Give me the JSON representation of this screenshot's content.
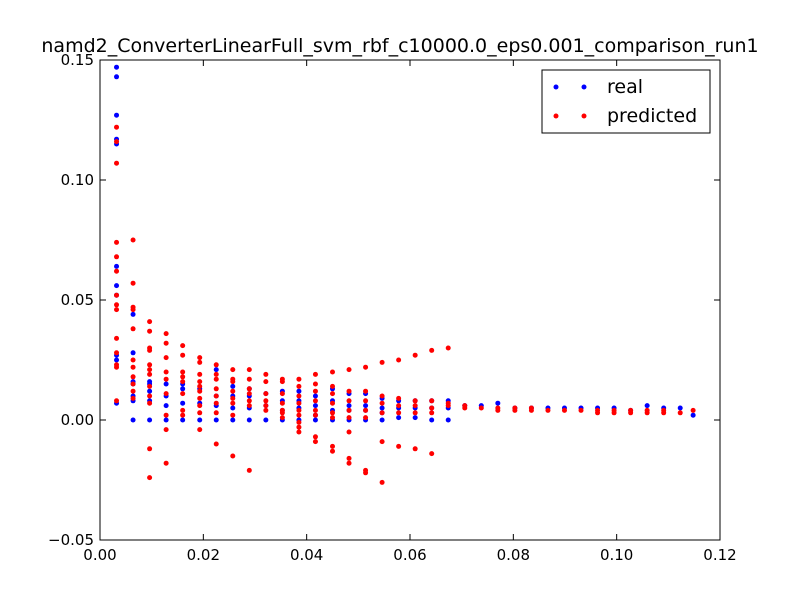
{
  "chart_data": {
    "type": "scatter",
    "title": "namd2_ConverterLinearFull_svm_rbf_c10000.0_eps0.001_comparison_run1",
    "xlabel": "",
    "ylabel": "",
    "xlim": [
      0.0,
      0.12
    ],
    "ylim": [
      -0.05,
      0.15
    ],
    "x_ticks": [
      0.0,
      0.02,
      0.04,
      0.06,
      0.08,
      0.1,
      0.12
    ],
    "x_tick_labels": [
      "0.00",
      "0.02",
      "0.04",
      "0.06",
      "0.08",
      "0.10",
      "0.12"
    ],
    "y_ticks": [
      -0.05,
      0.0,
      0.05,
      0.1,
      0.15
    ],
    "y_tick_labels": [
      "−0.05",
      "0.00",
      "0.05",
      "0.10",
      "0.15"
    ],
    "grid": false,
    "legend": "top-right",
    "series": [
      {
        "name": "real",
        "color": "#0000ff",
        "points": [
          [
            0.0032,
            0.147
          ],
          [
            0.0032,
            0.143
          ],
          [
            0.0032,
            0.127
          ],
          [
            0.0032,
            0.117
          ],
          [
            0.0032,
            0.115
          ],
          [
            0.0032,
            0.064
          ],
          [
            0.0032,
            0.056
          ],
          [
            0.0032,
            0.052
          ],
          [
            0.0032,
            0.027
          ],
          [
            0.0032,
            0.025
          ],
          [
            0.0032,
            0.007
          ],
          [
            0.0064,
            0.044
          ],
          [
            0.0064,
            0.028
          ],
          [
            0.0064,
            0.016
          ],
          [
            0.0064,
            0.015
          ],
          [
            0.0064,
            0.01
          ],
          [
            0.0064,
            0.008
          ],
          [
            0.0064,
            0.0
          ],
          [
            0.0096,
            0.016
          ],
          [
            0.0096,
            0.015
          ],
          [
            0.0096,
            0.012
          ],
          [
            0.0096,
            0.008
          ],
          [
            0.0096,
            0.0
          ],
          [
            0.0128,
            0.015
          ],
          [
            0.0128,
            0.01
          ],
          [
            0.0128,
            0.006
          ],
          [
            0.0128,
            0.0
          ],
          [
            0.016,
            0.015
          ],
          [
            0.016,
            0.013
          ],
          [
            0.016,
            0.007
          ],
          [
            0.016,
            0.0
          ],
          [
            0.0193,
            0.013
          ],
          [
            0.0193,
            0.007
          ],
          [
            0.0193,
            0.0
          ],
          [
            0.0225,
            0.021
          ],
          [
            0.0225,
            0.01
          ],
          [
            0.0225,
            0.006
          ],
          [
            0.0225,
            0.0
          ],
          [
            0.0257,
            0.014
          ],
          [
            0.0257,
            0.01
          ],
          [
            0.0257,
            0.005
          ],
          [
            0.0257,
            0.0
          ],
          [
            0.0289,
            0.013
          ],
          [
            0.0289,
            0.01
          ],
          [
            0.0289,
            0.005
          ],
          [
            0.0289,
            0.0
          ],
          [
            0.0321,
            0.011
          ],
          [
            0.0321,
            0.006
          ],
          [
            0.0321,
            0.0
          ],
          [
            0.0353,
            0.012
          ],
          [
            0.0353,
            0.008
          ],
          [
            0.0353,
            0.004
          ],
          [
            0.0353,
            0.0
          ],
          [
            0.0385,
            0.012
          ],
          [
            0.0385,
            0.008
          ],
          [
            0.0385,
            0.005
          ],
          [
            0.0385,
            0.0
          ],
          [
            0.0417,
            0.01
          ],
          [
            0.0417,
            0.006
          ],
          [
            0.0417,
            0.002
          ],
          [
            0.0417,
            0.0
          ],
          [
            0.045,
            0.013
          ],
          [
            0.045,
            0.008
          ],
          [
            0.045,
            0.004
          ],
          [
            0.045,
            0.0
          ],
          [
            0.0482,
            0.011
          ],
          [
            0.0482,
            0.006
          ],
          [
            0.0482,
            0.004
          ],
          [
            0.0482,
            0.0
          ],
          [
            0.0514,
            0.011
          ],
          [
            0.0514,
            0.006
          ],
          [
            0.0514,
            0.004
          ],
          [
            0.0514,
            0.0
          ],
          [
            0.0546,
            0.009
          ],
          [
            0.0546,
            0.005
          ],
          [
            0.0546,
            0.003
          ],
          [
            0.0546,
            0.0
          ],
          [
            0.0578,
            0.008
          ],
          [
            0.0578,
            0.005
          ],
          [
            0.0578,
            0.001
          ],
          [
            0.061,
            0.008
          ],
          [
            0.061,
            0.005
          ],
          [
            0.061,
            0.001
          ],
          [
            0.0642,
            0.008
          ],
          [
            0.0642,
            0.005
          ],
          [
            0.0642,
            0.0
          ],
          [
            0.0674,
            0.008
          ],
          [
            0.0674,
            0.005
          ],
          [
            0.0674,
            0.0
          ],
          [
            0.0706,
            0.006
          ],
          [
            0.0738,
            0.006
          ],
          [
            0.077,
            0.007
          ],
          [
            0.0803,
            0.005
          ],
          [
            0.0835,
            0.005
          ],
          [
            0.0867,
            0.005
          ],
          [
            0.0899,
            0.005
          ],
          [
            0.0931,
            0.005
          ],
          [
            0.0963,
            0.005
          ],
          [
            0.0995,
            0.005
          ],
          [
            0.1027,
            0.004
          ],
          [
            0.1059,
            0.006
          ],
          [
            0.1091,
            0.005
          ],
          [
            0.1123,
            0.005
          ],
          [
            0.1148,
            0.002
          ]
        ]
      },
      {
        "name": "predicted",
        "color": "#ff0000",
        "points": [
          [
            0.0032,
            0.122
          ],
          [
            0.0032,
            0.116
          ],
          [
            0.0032,
            0.107
          ],
          [
            0.0032,
            0.074
          ],
          [
            0.0032,
            0.068
          ],
          [
            0.0032,
            0.062
          ],
          [
            0.0032,
            0.052
          ],
          [
            0.0032,
            0.048
          ],
          [
            0.0032,
            0.046
          ],
          [
            0.0032,
            0.034
          ],
          [
            0.0032,
            0.028
          ],
          [
            0.0032,
            0.023
          ],
          [
            0.0032,
            0.022
          ],
          [
            0.0032,
            0.008
          ],
          [
            0.0064,
            0.075
          ],
          [
            0.0064,
            0.057
          ],
          [
            0.0064,
            0.047
          ],
          [
            0.0064,
            0.046
          ],
          [
            0.0064,
            0.038
          ],
          [
            0.0064,
            0.025
          ],
          [
            0.0064,
            0.022
          ],
          [
            0.0064,
            0.018
          ],
          [
            0.0064,
            0.015
          ],
          [
            0.0064,
            0.012
          ],
          [
            0.0064,
            0.009
          ],
          [
            0.0096,
            0.041
          ],
          [
            0.0096,
            0.037
          ],
          [
            0.0096,
            0.03
          ],
          [
            0.0096,
            0.029
          ],
          [
            0.0096,
            0.023
          ],
          [
            0.0096,
            0.021
          ],
          [
            0.0096,
            0.019
          ],
          [
            0.0096,
            0.014
          ],
          [
            0.0096,
            0.01
          ],
          [
            0.0096,
            0.007
          ],
          [
            0.0096,
            -0.012
          ],
          [
            0.0096,
            -0.024
          ],
          [
            0.0128,
            0.036
          ],
          [
            0.0128,
            0.032
          ],
          [
            0.0128,
            0.026
          ],
          [
            0.0128,
            0.02
          ],
          [
            0.0128,
            0.017
          ],
          [
            0.0128,
            0.011
          ],
          [
            0.0128,
            0.002
          ],
          [
            0.0128,
            -0.004
          ],
          [
            0.0128,
            -0.018
          ],
          [
            0.016,
            0.031
          ],
          [
            0.016,
            0.027
          ],
          [
            0.016,
            0.02
          ],
          [
            0.016,
            0.018
          ],
          [
            0.016,
            0.016
          ],
          [
            0.016,
            0.011
          ],
          [
            0.016,
            0.004
          ],
          [
            0.016,
            0.002
          ],
          [
            0.0193,
            0.026
          ],
          [
            0.0193,
            0.024
          ],
          [
            0.0193,
            0.019
          ],
          [
            0.0193,
            0.016
          ],
          [
            0.0193,
            0.014
          ],
          [
            0.0193,
            0.012
          ],
          [
            0.0193,
            0.009
          ],
          [
            0.0193,
            0.006
          ],
          [
            0.0193,
            0.003
          ],
          [
            0.0193,
            -0.004
          ],
          [
            0.0225,
            0.023
          ],
          [
            0.0225,
            0.019
          ],
          [
            0.0225,
            0.017
          ],
          [
            0.0225,
            0.013
          ],
          [
            0.0225,
            0.01
          ],
          [
            0.0225,
            0.007
          ],
          [
            0.0225,
            0.003
          ],
          [
            0.0225,
            -0.01
          ],
          [
            0.0257,
            0.021
          ],
          [
            0.0257,
            0.017
          ],
          [
            0.0257,
            0.016
          ],
          [
            0.0257,
            0.012
          ],
          [
            0.0257,
            0.009
          ],
          [
            0.0257,
            0.007
          ],
          [
            0.0257,
            0.002
          ],
          [
            0.0257,
            -0.015
          ],
          [
            0.0289,
            0.021
          ],
          [
            0.0289,
            0.017
          ],
          [
            0.0289,
            0.013
          ],
          [
            0.0289,
            0.011
          ],
          [
            0.0289,
            0.008
          ],
          [
            0.0289,
            0.006
          ],
          [
            0.0289,
            -0.021
          ],
          [
            0.0321,
            0.019
          ],
          [
            0.0321,
            0.016
          ],
          [
            0.0321,
            0.011
          ],
          [
            0.0321,
            0.008
          ],
          [
            0.0321,
            0.006
          ],
          [
            0.0321,
            0.004
          ],
          [
            0.0353,
            0.017
          ],
          [
            0.0353,
            0.016
          ],
          [
            0.0353,
            0.011
          ],
          [
            0.0353,
            0.007
          ],
          [
            0.0353,
            0.004
          ],
          [
            0.0353,
            0.003
          ],
          [
            0.0353,
            0.001
          ],
          [
            0.0385,
            0.017
          ],
          [
            0.0385,
            0.014
          ],
          [
            0.0385,
            0.01
          ],
          [
            0.0385,
            0.007
          ],
          [
            0.0385,
            0.004
          ],
          [
            0.0385,
            0.002
          ],
          [
            0.0385,
            -0.001
          ],
          [
            0.0385,
            -0.003
          ],
          [
            0.0385,
            -0.005
          ],
          [
            0.0417,
            0.019
          ],
          [
            0.0417,
            0.015
          ],
          [
            0.0417,
            0.012
          ],
          [
            0.0417,
            0.008
          ],
          [
            0.0417,
            0.004
          ],
          [
            0.0417,
            0.002
          ],
          [
            0.0417,
            -0.007
          ],
          [
            0.0417,
            -0.009
          ],
          [
            0.045,
            0.02
          ],
          [
            0.045,
            0.014
          ],
          [
            0.045,
            0.011
          ],
          [
            0.045,
            0.007
          ],
          [
            0.045,
            0.003
          ],
          [
            0.045,
            0.001
          ],
          [
            0.045,
            -0.011
          ],
          [
            0.045,
            -0.013
          ],
          [
            0.0482,
            0.021
          ],
          [
            0.0482,
            0.012
          ],
          [
            0.0482,
            0.008
          ],
          [
            0.0482,
            0.004
          ],
          [
            0.0482,
            0.001
          ],
          [
            0.0482,
            -0.005
          ],
          [
            0.0482,
            -0.016
          ],
          [
            0.0482,
            -0.018
          ],
          [
            0.0514,
            0.022
          ],
          [
            0.0514,
            0.012
          ],
          [
            0.0514,
            0.008
          ],
          [
            0.0514,
            0.004
          ],
          [
            0.0514,
            0.001
          ],
          [
            0.0514,
            -0.021
          ],
          [
            0.0514,
            -0.022
          ],
          [
            0.0546,
            0.024
          ],
          [
            0.0546,
            0.01
          ],
          [
            0.0546,
            0.007
          ],
          [
            0.0546,
            0.003
          ],
          [
            0.0546,
            -0.009
          ],
          [
            0.0546,
            -0.026
          ],
          [
            0.0578,
            0.025
          ],
          [
            0.0578,
            0.009
          ],
          [
            0.0578,
            0.006
          ],
          [
            0.0578,
            0.003
          ],
          [
            0.0578,
            -0.011
          ],
          [
            0.061,
            0.027
          ],
          [
            0.061,
            0.008
          ],
          [
            0.061,
            0.006
          ],
          [
            0.061,
            0.003
          ],
          [
            0.061,
            -0.012
          ],
          [
            0.0642,
            0.029
          ],
          [
            0.0642,
            0.008
          ],
          [
            0.0642,
            0.005
          ],
          [
            0.0642,
            0.003
          ],
          [
            0.0642,
            -0.014
          ],
          [
            0.0674,
            0.03
          ],
          [
            0.0674,
            0.007
          ],
          [
            0.0674,
            0.006
          ],
          [
            0.0706,
            0.006
          ],
          [
            0.0706,
            0.005
          ],
          [
            0.0738,
            0.005
          ],
          [
            0.077,
            0.005
          ],
          [
            0.077,
            0.004
          ],
          [
            0.0803,
            0.005
          ],
          [
            0.0803,
            0.004
          ],
          [
            0.0835,
            0.005
          ],
          [
            0.0835,
            0.004
          ],
          [
            0.0867,
            0.004
          ],
          [
            0.0899,
            0.004
          ],
          [
            0.0931,
            0.004
          ],
          [
            0.0963,
            0.003
          ],
          [
            0.0963,
            0.004
          ],
          [
            0.0995,
            0.004
          ],
          [
            0.0995,
            0.003
          ],
          [
            0.1027,
            0.004
          ],
          [
            0.1027,
            0.003
          ],
          [
            0.1059,
            0.004
          ],
          [
            0.1059,
            0.003
          ],
          [
            0.1091,
            0.004
          ],
          [
            0.1091,
            0.003
          ],
          [
            0.1123,
            0.003
          ],
          [
            0.1148,
            0.004
          ]
        ]
      }
    ]
  }
}
